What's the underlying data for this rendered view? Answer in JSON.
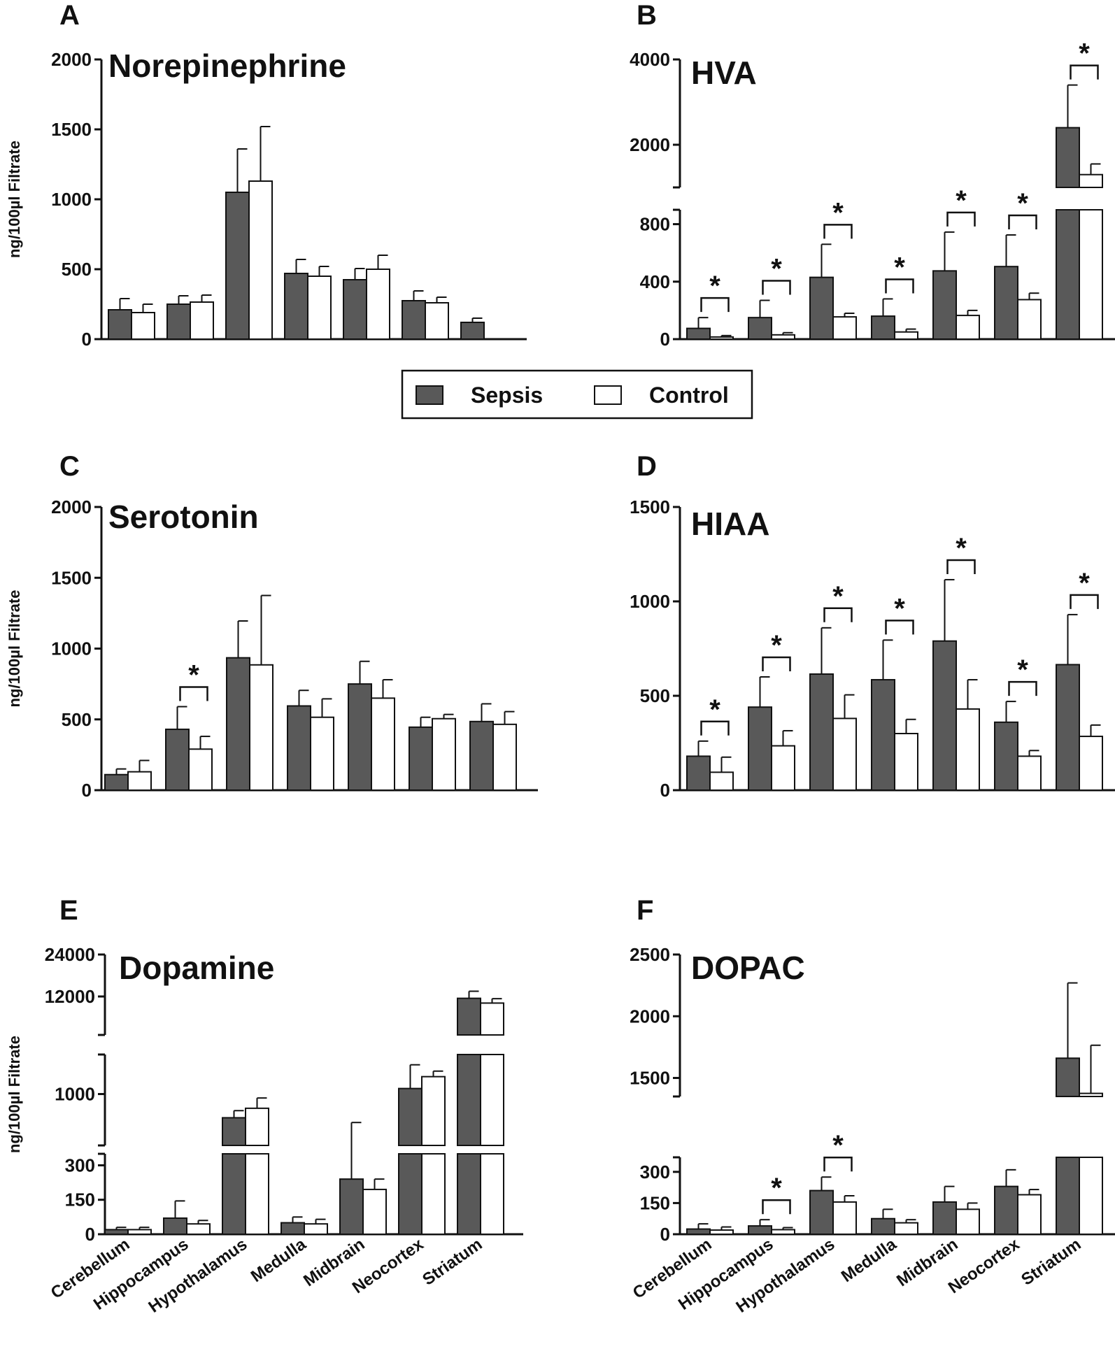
{
  "legend": {
    "sepsis_label": "Sepsis",
    "control_label": "Control",
    "sepsis_color": "#595959",
    "control_color": "#ffffff"
  },
  "chart_data": [
    {
      "panel": "A",
      "type": "bar",
      "title": "Norepinephrine",
      "ylabel": "ng/100µl Filtrate",
      "categories": [
        "Cerebellum",
        "Hippocampus",
        "Hypothalamus",
        "Medulla",
        "Midbrain",
        "Neocortex",
        "Striatum"
      ],
      "ylim": [
        0,
        2000
      ],
      "yticks": [
        "0",
        "500",
        "1000",
        "1500",
        "2000"
      ],
      "series": [
        {
          "name": "Sepsis",
          "values": [
            210,
            250,
            1050,
            470,
            425,
            275,
            120
          ],
          "errors": [
            80,
            60,
            310,
            100,
            80,
            70,
            30
          ]
        },
        {
          "name": "Control",
          "values": [
            190,
            265,
            1130,
            450,
            500,
            260,
            null
          ],
          "errors": [
            60,
            50,
            390,
            70,
            100,
            40,
            null
          ]
        }
      ],
      "significant": []
    },
    {
      "panel": "B",
      "type": "bar",
      "title": "HVA",
      "ylabel": "",
      "categories": [
        "Cerebellum",
        "Hippocampus",
        "Hypothalamus",
        "Medulla",
        "Midbrain",
        "Neocortex",
        "Striatum"
      ],
      "axis_break": true,
      "lower_ylim": [
        0,
        900
      ],
      "upper_ylim": [
        1000,
        4000
      ],
      "lower_yticks": [
        "0",
        "400",
        "800"
      ],
      "upper_yticks": [
        "2000",
        "4000"
      ],
      "series": [
        {
          "name": "Sepsis",
          "values": [
            75,
            150,
            430,
            160,
            475,
            505,
            2400
          ],
          "errors": [
            75,
            120,
            230,
            120,
            270,
            220,
            1000
          ]
        },
        {
          "name": "Control",
          "values": [
            15,
            30,
            155,
            50,
            165,
            275,
            1300
          ],
          "errors": [
            10,
            15,
            25,
            20,
            35,
            45,
            250
          ]
        }
      ],
      "significant": [
        0,
        1,
        2,
        3,
        4,
        5,
        6
      ]
    },
    {
      "panel": "C",
      "type": "bar",
      "title": "Serotonin",
      "ylabel": "ng/100µl Filtrate",
      "categories": [
        "Cerebellum",
        "Hippocampus",
        "Hypothalamus",
        "Medulla",
        "Midbrain",
        "Neocortex",
        "Striatum"
      ],
      "ylim": [
        0,
        2000
      ],
      "yticks": [
        "0",
        "500",
        "1000",
        "1500",
        "2000"
      ],
      "series": [
        {
          "name": "Sepsis",
          "values": [
            110,
            430,
            935,
            595,
            750,
            445,
            485
          ],
          "errors": [
            40,
            160,
            260,
            110,
            160,
            70,
            125
          ]
        },
        {
          "name": "Control",
          "values": [
            130,
            290,
            885,
            515,
            650,
            505,
            465
          ],
          "errors": [
            80,
            90,
            490,
            130,
            130,
            30,
            90
          ]
        }
      ],
      "significant": [
        1
      ]
    },
    {
      "panel": "D",
      "type": "bar",
      "title": "HIAA",
      "ylabel": "",
      "categories": [
        "Cerebellum",
        "Hippocampus",
        "Hypothalamus",
        "Medulla",
        "Midbrain",
        "Neocortex",
        "Striatum"
      ],
      "ylim": [
        0,
        1500
      ],
      "yticks": [
        "0",
        "500",
        "1000",
        "1500"
      ],
      "series": [
        {
          "name": "Sepsis",
          "values": [
            180,
            440,
            615,
            585,
            790,
            360,
            665
          ],
          "errors": [
            80,
            160,
            245,
            210,
            325,
            110,
            265
          ]
        },
        {
          "name": "Control",
          "values": [
            95,
            235,
            380,
            300,
            430,
            180,
            285
          ],
          "errors": [
            80,
            80,
            125,
            75,
            155,
            30,
            60
          ]
        }
      ],
      "significant": [
        0,
        1,
        2,
        3,
        4,
        5,
        6
      ]
    },
    {
      "panel": "E",
      "type": "bar",
      "title": "Dopamine",
      "ylabel": "ng/100µl Filtrate",
      "categories": [
        "Cerebellum",
        "Hippocampus",
        "Hypothalamus",
        "Medulla",
        "Midbrain",
        "Neocortex",
        "Striatum"
      ],
      "axis_break": true,
      "segments": [
        {
          "range": [
            0,
            350
          ],
          "yticks": [
            "0",
            "150",
            "300"
          ],
          "ytick_values": [
            0,
            150,
            300
          ]
        },
        {
          "range": [
            350,
            1500
          ],
          "yticks": [
            "1000"
          ],
          "ytick_values": [
            1000
          ]
        },
        {
          "range": [
            1500,
            24000
          ],
          "yticks": [
            "12000",
            "24000"
          ],
          "ytick_values": [
            12000,
            24000
          ]
        }
      ],
      "series": [
        {
          "name": "Sepsis",
          "values": [
            20,
            70,
            700,
            50,
            240,
            1070,
            11500
          ],
          "errors": [
            10,
            75,
            90,
            25,
            400,
            300,
            2000
          ]
        },
        {
          "name": "Control",
          "values": [
            20,
            45,
            820,
            45,
            195,
            1220,
            10200
          ],
          "errors": [
            10,
            15,
            130,
            20,
            45,
            70,
            1200
          ]
        }
      ],
      "significant": []
    },
    {
      "panel": "F",
      "type": "bar",
      "title": "DOPAC",
      "ylabel": "",
      "categories": [
        "Cerebellum",
        "Hippocampus",
        "Hypothalamus",
        "Medulla",
        "Midbrain",
        "Neocortex",
        "Striatum"
      ],
      "axis_break": true,
      "lower_ylim": [
        0,
        370
      ],
      "upper_ylim": [
        1350,
        2500
      ],
      "lower_yticks": [
        "0",
        "150",
        "300"
      ],
      "upper_yticks": [
        "1500",
        "2000",
        "2500"
      ],
      "series": [
        {
          "name": "Sepsis",
          "values": [
            25,
            40,
            210,
            75,
            155,
            230,
            1660
          ],
          "errors": [
            25,
            30,
            65,
            45,
            75,
            80,
            610
          ]
        },
        {
          "name": "Control",
          "values": [
            20,
            22,
            155,
            55,
            120,
            190,
            1375
          ],
          "errors": [
            15,
            10,
            30,
            15,
            30,
            25,
            390
          ]
        }
      ],
      "significant": [
        1,
        2
      ]
    }
  ]
}
